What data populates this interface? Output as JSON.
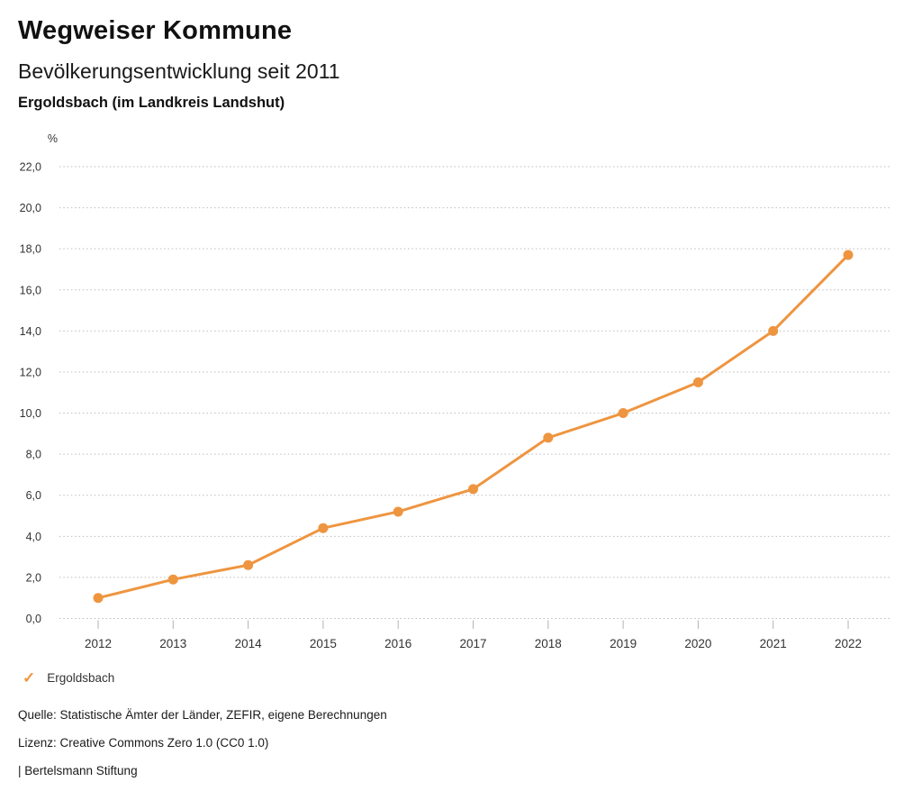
{
  "header": {
    "app_title": "Wegweiser Kommune",
    "chart_title": "Bevölkerungsentwicklung seit 2011",
    "region_subtitle": "Ergoldsbach (im Landkreis Landshut)"
  },
  "chart_data": {
    "type": "line",
    "title": "Bevölkerungsentwicklung seit 2011",
    "unit": "%",
    "categories": [
      "2012",
      "2013",
      "2014",
      "2015",
      "2016",
      "2017",
      "2018",
      "2019",
      "2020",
      "2021",
      "2022"
    ],
    "series": [
      {
        "name": "Ergoldsbach",
        "color": "#EE9540",
        "values": [
          1.0,
          1.9,
          2.6,
          4.4,
          5.2,
          6.3,
          8.8,
          10.0,
          11.5,
          14.0,
          17.7
        ]
      }
    ],
    "ylim": [
      0,
      22
    ],
    "ytick_step": 2,
    "ytick_labels": [
      "0,0",
      "2,0",
      "4,0",
      "6,0",
      "8,0",
      "10,0",
      "12,0",
      "14,0",
      "16,0",
      "18,0",
      "20,0",
      "22,0"
    ],
    "decimal_separator": ",",
    "grid": "horizontal-dotted",
    "legend_position": "bottom-left",
    "xlabel": "",
    "ylabel": "%"
  },
  "legend": {
    "items": [
      {
        "icon": "check-icon",
        "glyph": "✓",
        "label": "Ergoldsbach",
        "color": "#EE9540"
      }
    ]
  },
  "footer": {
    "source": "Quelle: Statistische Ämter der Länder, ZEFIR, eigene Berechnungen",
    "license": "Lizenz: Creative Commons Zero 1.0 (CC0 1.0)",
    "attribution": "| Bertelsmann Stiftung"
  },
  "colors": {
    "accent": "#EE9540",
    "grid": "#BDBDBD",
    "axis_text": "#333333",
    "text": "#1A1A1A",
    "background": "#FFFFFF"
  }
}
